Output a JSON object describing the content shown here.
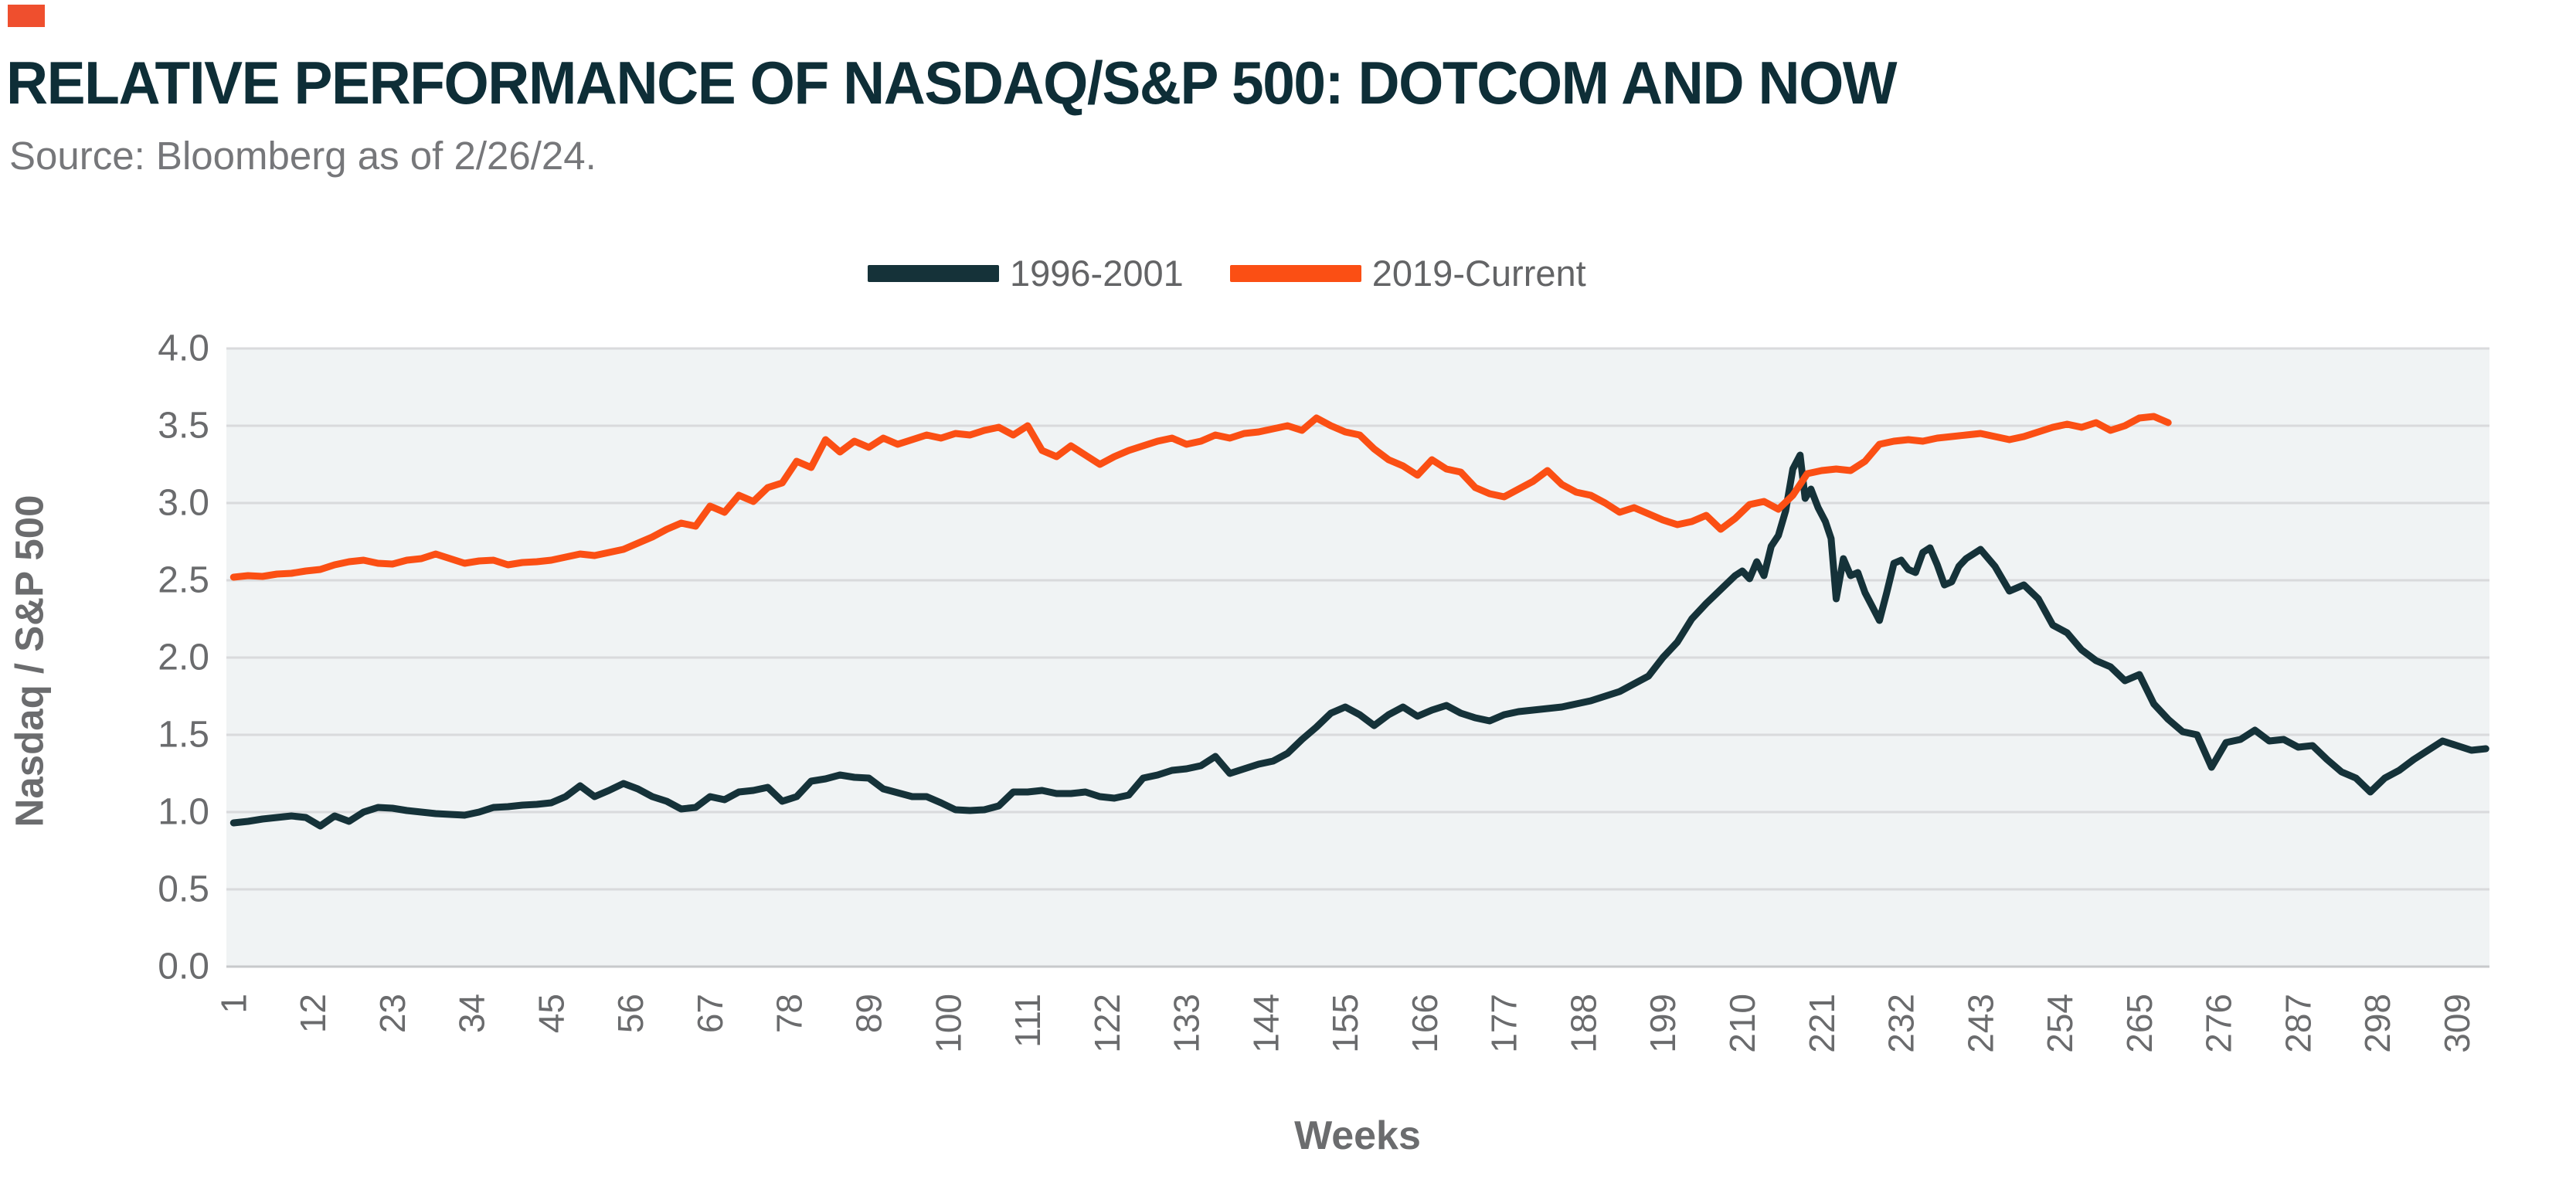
{
  "header": {
    "title": "RELATIVE PERFORMANCE OF NASDAQ/S&P 500: DOTCOM AND NOW",
    "source": "Source: Bloomberg as of 2/26/24.",
    "brand_mark_color": "#ef4f2e"
  },
  "legend": {
    "items": [
      {
        "label": "1996-2001",
        "color": "#153239"
      },
      {
        "label": "2019-Current",
        "color": "#fb4f14"
      }
    ]
  },
  "chart_data": {
    "type": "line",
    "title": "RELATIVE PERFORMANCE OF NASDAQ/S&P 500: DOTCOM AND NOW",
    "xlabel": "Weeks",
    "ylabel": "Nasdaq / S&P 500",
    "xlim": [
      0,
      313.5
    ],
    "ylim": [
      0.0,
      4.0
    ],
    "grid": "horizontal",
    "legend_position": "top-center",
    "plot_bg": "#f0f3f4",
    "grid_color": "#d9dadc",
    "axis_line_color": "#c7c9cb",
    "tick_label_color": "#6a6b6d",
    "x_ticks": [
      1,
      12,
      23,
      34,
      45,
      56,
      67,
      78,
      89,
      100,
      111,
      122,
      133,
      144,
      155,
      166,
      177,
      188,
      199,
      210,
      221,
      232,
      243,
      254,
      265,
      276,
      287,
      298,
      309
    ],
    "y_ticks": [
      "0.0",
      "0.5",
      "1.0",
      "1.5",
      "2.0",
      "2.5",
      "3.0",
      "3.5",
      "4.0"
    ],
    "series": [
      {
        "name": "1996-2001",
        "color": "#153239",
        "points": [
          [
            1,
            0.93
          ],
          [
            3,
            0.94
          ],
          [
            5,
            0.955
          ],
          [
            7,
            0.965
          ],
          [
            9,
            0.975
          ],
          [
            11,
            0.965
          ],
          [
            13,
            0.91
          ],
          [
            15,
            0.975
          ],
          [
            17,
            0.94
          ],
          [
            19,
            1.0
          ],
          [
            21,
            1.03
          ],
          [
            23,
            1.025
          ],
          [
            25,
            1.01
          ],
          [
            27,
            1.0
          ],
          [
            29,
            0.99
          ],
          [
            31,
            0.985
          ],
          [
            33,
            0.98
          ],
          [
            35,
            1.0
          ],
          [
            37,
            1.03
          ],
          [
            39,
            1.035
          ],
          [
            41,
            1.045
          ],
          [
            43,
            1.05
          ],
          [
            45,
            1.06
          ],
          [
            47,
            1.1
          ],
          [
            49,
            1.17
          ],
          [
            51,
            1.1
          ],
          [
            53,
            1.14
          ],
          [
            55,
            1.185
          ],
          [
            57,
            1.15
          ],
          [
            59,
            1.1
          ],
          [
            61,
            1.07
          ],
          [
            63,
            1.02
          ],
          [
            65,
            1.03
          ],
          [
            67,
            1.1
          ],
          [
            69,
            1.08
          ],
          [
            71,
            1.13
          ],
          [
            73,
            1.14
          ],
          [
            75,
            1.16
          ],
          [
            77,
            1.07
          ],
          [
            79,
            1.1
          ],
          [
            81,
            1.2
          ],
          [
            83,
            1.215
          ],
          [
            85,
            1.24
          ],
          [
            87,
            1.225
          ],
          [
            89,
            1.22
          ],
          [
            91,
            1.15
          ],
          [
            93,
            1.125
          ],
          [
            95,
            1.1
          ],
          [
            97,
            1.1
          ],
          [
            99,
            1.06
          ],
          [
            101,
            1.015
          ],
          [
            103,
            1.01
          ],
          [
            105,
            1.015
          ],
          [
            107,
            1.04
          ],
          [
            109,
            1.13
          ],
          [
            111,
            1.13
          ],
          [
            113,
            1.14
          ],
          [
            115,
            1.12
          ],
          [
            117,
            1.12
          ],
          [
            119,
            1.13
          ],
          [
            121,
            1.1
          ],
          [
            123,
            1.09
          ],
          [
            125,
            1.11
          ],
          [
            127,
            1.22
          ],
          [
            129,
            1.24
          ],
          [
            131,
            1.27
          ],
          [
            133,
            1.28
          ],
          [
            135,
            1.3
          ],
          [
            137,
            1.36
          ],
          [
            139,
            1.25
          ],
          [
            141,
            1.28
          ],
          [
            143,
            1.31
          ],
          [
            145,
            1.33
          ],
          [
            147,
            1.38
          ],
          [
            149,
            1.47
          ],
          [
            151,
            1.55
          ],
          [
            153,
            1.64
          ],
          [
            155,
            1.68
          ],
          [
            157,
            1.63
          ],
          [
            159,
            1.56
          ],
          [
            161,
            1.63
          ],
          [
            163,
            1.68
          ],
          [
            165,
            1.62
          ],
          [
            167,
            1.66
          ],
          [
            169,
            1.69
          ],
          [
            171,
            1.64
          ],
          [
            173,
            1.61
          ],
          [
            175,
            1.59
          ],
          [
            177,
            1.63
          ],
          [
            179,
            1.65
          ],
          [
            181,
            1.66
          ],
          [
            183,
            1.67
          ],
          [
            185,
            1.68
          ],
          [
            187,
            1.7
          ],
          [
            189,
            1.72
          ],
          [
            191,
            1.75
          ],
          [
            193,
            1.78
          ],
          [
            195,
            1.83
          ],
          [
            197,
            1.88
          ],
          [
            199,
            2.0
          ],
          [
            201,
            2.1
          ],
          [
            203,
            2.25
          ],
          [
            205,
            2.35
          ],
          [
            207,
            2.44
          ],
          [
            209,
            2.53
          ],
          [
            210,
            2.56
          ],
          [
            211,
            2.51
          ],
          [
            212,
            2.62
          ],
          [
            213,
            2.53
          ],
          [
            214,
            2.72
          ],
          [
            215,
            2.79
          ],
          [
            216,
            2.95
          ],
          [
            217,
            3.22
          ],
          [
            218,
            3.31
          ],
          [
            218.7,
            3.03
          ],
          [
            219.5,
            3.09
          ],
          [
            220.5,
            2.97
          ],
          [
            221.5,
            2.88
          ],
          [
            222.3,
            2.77
          ],
          [
            223,
            2.38
          ],
          [
            224,
            2.64
          ],
          [
            225,
            2.53
          ],
          [
            226,
            2.55
          ],
          [
            227,
            2.42
          ],
          [
            228,
            2.33
          ],
          [
            229,
            2.24
          ],
          [
            230,
            2.42
          ],
          [
            231,
            2.61
          ],
          [
            232,
            2.63
          ],
          [
            233,
            2.57
          ],
          [
            234,
            2.55
          ],
          [
            235,
            2.68
          ],
          [
            236,
            2.71
          ],
          [
            237,
            2.6
          ],
          [
            238,
            2.47
          ],
          [
            239,
            2.49
          ],
          [
            240,
            2.59
          ],
          [
            241,
            2.64
          ],
          [
            243,
            2.7
          ],
          [
            245,
            2.59
          ],
          [
            247,
            2.43
          ],
          [
            249,
            2.47
          ],
          [
            251,
            2.38
          ],
          [
            253,
            2.21
          ],
          [
            255,
            2.16
          ],
          [
            257,
            2.05
          ],
          [
            259,
            1.98
          ],
          [
            261,
            1.94
          ],
          [
            263,
            1.85
          ],
          [
            265,
            1.89
          ],
          [
            267,
            1.7
          ],
          [
            269,
            1.6
          ],
          [
            271,
            1.52
          ],
          [
            273,
            1.5
          ],
          [
            275,
            1.29
          ],
          [
            277,
            1.45
          ],
          [
            279,
            1.47
          ],
          [
            281,
            1.53
          ],
          [
            283,
            1.46
          ],
          [
            285,
            1.47
          ],
          [
            287,
            1.42
          ],
          [
            289,
            1.43
          ],
          [
            291,
            1.34
          ],
          [
            293,
            1.26
          ],
          [
            295,
            1.22
          ],
          [
            297,
            1.13
          ],
          [
            299,
            1.22
          ],
          [
            301,
            1.27
          ],
          [
            303,
            1.34
          ],
          [
            305,
            1.4
          ],
          [
            307,
            1.46
          ],
          [
            309,
            1.43
          ],
          [
            311,
            1.4
          ],
          [
            313,
            1.41
          ]
        ]
      },
      {
        "name": "2019-Current",
        "color": "#fb4f14",
        "points": [
          [
            1,
            2.52
          ],
          [
            3,
            2.53
          ],
          [
            5,
            2.525
          ],
          [
            7,
            2.54
          ],
          [
            9,
            2.545
          ],
          [
            11,
            2.56
          ],
          [
            13,
            2.57
          ],
          [
            15,
            2.6
          ],
          [
            17,
            2.62
          ],
          [
            19,
            2.63
          ],
          [
            21,
            2.61
          ],
          [
            23,
            2.605
          ],
          [
            25,
            2.63
          ],
          [
            27,
            2.64
          ],
          [
            29,
            2.67
          ],
          [
            31,
            2.64
          ],
          [
            33,
            2.61
          ],
          [
            35,
            2.625
          ],
          [
            37,
            2.63
          ],
          [
            39,
            2.6
          ],
          [
            41,
            2.615
          ],
          [
            43,
            2.62
          ],
          [
            45,
            2.63
          ],
          [
            47,
            2.65
          ],
          [
            49,
            2.67
          ],
          [
            51,
            2.66
          ],
          [
            53,
            2.68
          ],
          [
            55,
            2.7
          ],
          [
            57,
            2.74
          ],
          [
            59,
            2.78
          ],
          [
            61,
            2.83
          ],
          [
            63,
            2.87
          ],
          [
            65,
            2.85
          ],
          [
            67,
            2.98
          ],
          [
            69,
            2.94
          ],
          [
            71,
            3.05
          ],
          [
            73,
            3.01
          ],
          [
            75,
            3.1
          ],
          [
            77,
            3.13
          ],
          [
            79,
            3.27
          ],
          [
            81,
            3.23
          ],
          [
            83,
            3.41
          ],
          [
            85,
            3.33
          ],
          [
            87,
            3.4
          ],
          [
            89,
            3.36
          ],
          [
            91,
            3.42
          ],
          [
            93,
            3.38
          ],
          [
            95,
            3.41
          ],
          [
            97,
            3.44
          ],
          [
            99,
            3.42
          ],
          [
            101,
            3.45
          ],
          [
            103,
            3.44
          ],
          [
            105,
            3.47
          ],
          [
            107,
            3.49
          ],
          [
            109,
            3.44
          ],
          [
            111,
            3.5
          ],
          [
            113,
            3.34
          ],
          [
            115,
            3.3
          ],
          [
            117,
            3.37
          ],
          [
            119,
            3.31
          ],
          [
            121,
            3.25
          ],
          [
            123,
            3.3
          ],
          [
            125,
            3.34
          ],
          [
            127,
            3.37
          ],
          [
            129,
            3.4
          ],
          [
            131,
            3.42
          ],
          [
            133,
            3.38
          ],
          [
            135,
            3.4
          ],
          [
            137,
            3.44
          ],
          [
            139,
            3.42
          ],
          [
            141,
            3.45
          ],
          [
            143,
            3.46
          ],
          [
            145,
            3.48
          ],
          [
            147,
            3.5
          ],
          [
            149,
            3.47
          ],
          [
            151,
            3.55
          ],
          [
            153,
            3.5
          ],
          [
            155,
            3.46
          ],
          [
            157,
            3.44
          ],
          [
            159,
            3.35
          ],
          [
            161,
            3.28
          ],
          [
            163,
            3.24
          ],
          [
            165,
            3.18
          ],
          [
            167,
            3.28
          ],
          [
            169,
            3.22
          ],
          [
            171,
            3.2
          ],
          [
            173,
            3.1
          ],
          [
            175,
            3.06
          ],
          [
            177,
            3.04
          ],
          [
            179,
            3.09
          ],
          [
            181,
            3.14
          ],
          [
            183,
            3.21
          ],
          [
            185,
            3.12
          ],
          [
            187,
            3.07
          ],
          [
            189,
            3.05
          ],
          [
            191,
            3.0
          ],
          [
            193,
            2.94
          ],
          [
            195,
            2.97
          ],
          [
            197,
            2.93
          ],
          [
            199,
            2.89
          ],
          [
            201,
            2.86
          ],
          [
            203,
            2.88
          ],
          [
            205,
            2.92
          ],
          [
            207,
            2.83
          ],
          [
            209,
            2.9
          ],
          [
            211,
            2.99
          ],
          [
            213,
            3.01
          ],
          [
            215,
            2.96
          ],
          [
            217,
            3.05
          ],
          [
            219,
            3.19
          ],
          [
            221,
            3.21
          ],
          [
            223,
            3.22
          ],
          [
            225,
            3.21
          ],
          [
            227,
            3.27
          ],
          [
            229,
            3.38
          ],
          [
            231,
            3.4
          ],
          [
            233,
            3.41
          ],
          [
            235,
            3.4
          ],
          [
            237,
            3.42
          ],
          [
            239,
            3.43
          ],
          [
            241,
            3.44
          ],
          [
            243,
            3.45
          ],
          [
            245,
            3.43
          ],
          [
            247,
            3.41
          ],
          [
            249,
            3.43
          ],
          [
            251,
            3.46
          ],
          [
            253,
            3.49
          ],
          [
            255,
            3.51
          ],
          [
            257,
            3.49
          ],
          [
            259,
            3.52
          ],
          [
            261,
            3.47
          ],
          [
            263,
            3.5
          ],
          [
            265,
            3.55
          ],
          [
            267,
            3.56
          ],
          [
            269,
            3.52
          ]
        ]
      }
    ]
  }
}
